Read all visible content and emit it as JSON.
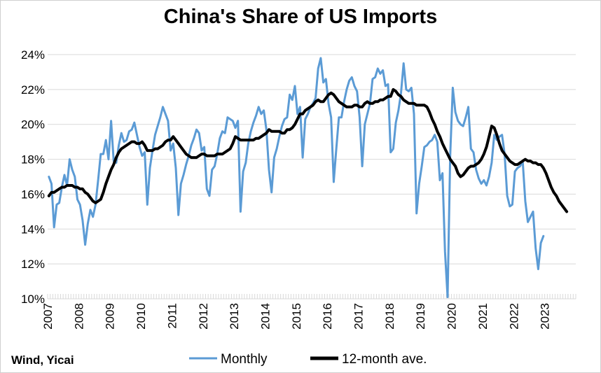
{
  "chart_data": {
    "type": "line",
    "title": "China's Share of US Imports",
    "source": "Wind, Yicai",
    "xlabel": "",
    "ylabel": "",
    "ylim": [
      10,
      24
    ],
    "yticks": [
      10,
      12,
      14,
      16,
      18,
      20,
      22,
      24
    ],
    "ytick_labels": [
      "10%",
      "12%",
      "14%",
      "16%",
      "18%",
      "20%",
      "22%",
      "24%"
    ],
    "xtick_labels": [
      "2007",
      "2008",
      "2009",
      "2010",
      "2011",
      "2012",
      "2013",
      "2014",
      "2015",
      "2016",
      "2017",
      "2018",
      "2019",
      "2020",
      "2021",
      "2022",
      "2023"
    ],
    "x_start": "2007-01",
    "grid": "horizontal",
    "legend_position": "bottom",
    "colors": {
      "monthly": "#5b9bd5",
      "avg": "#000000",
      "grid": "#d9d9d9"
    },
    "series": [
      {
        "name": "Monthly",
        "values": [
          17.0,
          16.6,
          14.1,
          15.4,
          15.5,
          16.4,
          17.1,
          16.5,
          18.0,
          17.4,
          17.0,
          15.7,
          15.4,
          14.5,
          13.1,
          14.3,
          15.1,
          14.7,
          15.4,
          16.8,
          18.3,
          18.3,
          19.1,
          18.0,
          20.2,
          17.9,
          17.8,
          18.8,
          19.5,
          19.0,
          19.1,
          19.6,
          19.7,
          20.1,
          19.4,
          18.7,
          18.2,
          18.4,
          15.4,
          17.5,
          18.5,
          19.4,
          19.9,
          20.4,
          21.0,
          20.6,
          20.2,
          18.5,
          18.9,
          17.5,
          14.8,
          16.6,
          17.1,
          17.7,
          18.2,
          18.8,
          19.2,
          19.7,
          19.5,
          18.5,
          18.7,
          16.3,
          15.9,
          17.4,
          17.6,
          18.3,
          19.2,
          19.6,
          19.5,
          20.4,
          20.3,
          20.2,
          19.8,
          20.2,
          15.0,
          17.3,
          17.8,
          18.9,
          19.6,
          20.1,
          20.5,
          21.0,
          20.6,
          20.8,
          19.7,
          17.4,
          16.1,
          18.1,
          18.6,
          19.3,
          19.9,
          20.3,
          20.4,
          21.7,
          21.4,
          22.2,
          20.6,
          21.0,
          18.1,
          20.3,
          20.6,
          21.0,
          21.2,
          21.5,
          23.2,
          23.8,
          22.4,
          22.6,
          21.2,
          20.4,
          16.7,
          18.6,
          20.4,
          20.4,
          21.3,
          22.0,
          22.5,
          22.7,
          22.2,
          21.9,
          20.4,
          17.6,
          20.0,
          20.6,
          21.2,
          22.6,
          22.7,
          23.2,
          22.9,
          23.1,
          22.2,
          22.3,
          18.4,
          18.6,
          20.1,
          20.8,
          21.8,
          23.5,
          22.0,
          21.9,
          22.1,
          20.6,
          14.9,
          16.6,
          17.6,
          18.7,
          18.8,
          19.0,
          19.1,
          19.4,
          19.0,
          16.8,
          17.2,
          12.7,
          10.1,
          18.2,
          22.1,
          20.7,
          20.2,
          20.0,
          19.9,
          20.4,
          21.0,
          18.6,
          18.4,
          17.4,
          16.9,
          16.6,
          16.8,
          16.5,
          17.0,
          17.8,
          19.4,
          19.1,
          19.3,
          19.4,
          18.3,
          15.9,
          15.3,
          15.4,
          17.3,
          17.5,
          17.6,
          17.9,
          15.6,
          14.4,
          14.7,
          15.0,
          12.9,
          11.7,
          13.2,
          13.6
        ]
      },
      {
        "name": "12-month ave.",
        "values": [
          15.9,
          16.1,
          16.1,
          16.2,
          16.3,
          16.4,
          16.4,
          16.5,
          16.5,
          16.5,
          16.4,
          16.4,
          16.3,
          16.3,
          16.1,
          16.0,
          15.8,
          15.6,
          15.5,
          15.6,
          15.7,
          16.1,
          16.6,
          17.0,
          17.4,
          17.7,
          18.1,
          18.4,
          18.6,
          18.7,
          18.8,
          18.9,
          19.0,
          19.0,
          18.9,
          18.9,
          19.0,
          18.8,
          18.5,
          18.5,
          18.5,
          18.6,
          18.6,
          18.7,
          18.8,
          19.0,
          19.1,
          19.1,
          19.3,
          19.1,
          18.9,
          18.7,
          18.5,
          18.3,
          18.2,
          18.1,
          18.1,
          18.1,
          18.2,
          18.3,
          18.3,
          18.2,
          18.2,
          18.2,
          18.2,
          18.3,
          18.3,
          18.3,
          18.4,
          18.5,
          18.6,
          18.9,
          19.3,
          19.2,
          19.1,
          19.1,
          19.1,
          19.1,
          19.1,
          19.1,
          19.2,
          19.2,
          19.3,
          19.4,
          19.5,
          19.7,
          19.6,
          19.6,
          19.6,
          19.6,
          19.5,
          19.5,
          19.7,
          19.7,
          19.8,
          20.0,
          20.3,
          20.6,
          20.6,
          20.8,
          20.9,
          21.0,
          21.1,
          21.3,
          21.4,
          21.3,
          21.3,
          21.5,
          21.7,
          21.8,
          21.7,
          21.5,
          21.3,
          21.2,
          21.1,
          21.0,
          21.0,
          21.0,
          21.1,
          21.1,
          21.0,
          21.0,
          21.2,
          21.3,
          21.2,
          21.2,
          21.3,
          21.3,
          21.4,
          21.4,
          21.5,
          21.6,
          21.6,
          22.0,
          21.9,
          21.7,
          21.6,
          21.4,
          21.3,
          21.2,
          21.2,
          21.2,
          21.1,
          21.1,
          21.1,
          21.1,
          21.0,
          20.7,
          20.3,
          20.0,
          19.6,
          19.3,
          18.9,
          18.6,
          18.3,
          18.0,
          17.8,
          17.6,
          17.2,
          17.0,
          17.1,
          17.3,
          17.5,
          17.6,
          17.6,
          17.7,
          17.8,
          18.0,
          18.3,
          18.7,
          19.3,
          19.9,
          19.8,
          19.4,
          18.9,
          18.5,
          18.3,
          18.1,
          17.9,
          17.8,
          17.7,
          17.7,
          17.8,
          17.9,
          18.0,
          17.9,
          17.9,
          17.8,
          17.8,
          17.7,
          17.7,
          17.5,
          17.2,
          16.8,
          16.4,
          16.1,
          15.9,
          15.6,
          15.4,
          15.2,
          15.0
        ]
      }
    ]
  }
}
